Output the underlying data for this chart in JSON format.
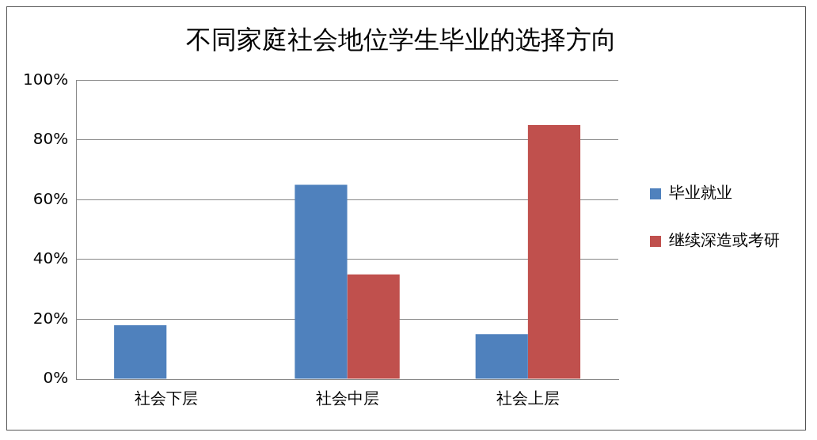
{
  "chart_data": {
    "type": "bar",
    "title": "不同家庭社会地位学生毕业的选择方向",
    "categories": [
      "社会下层",
      "社会中层",
      "社会上层"
    ],
    "series": [
      {
        "name": "毕业就业",
        "color": "#4f81bd",
        "values": [
          18,
          65,
          15
        ]
      },
      {
        "name": "继续深造或考研",
        "color": "#c0504d",
        "values": [
          0,
          35,
          85
        ]
      }
    ],
    "ylim": [
      0,
      100
    ],
    "yticks": [
      {
        "value": 0,
        "label": "0%"
      },
      {
        "value": 20,
        "label": "20%"
      },
      {
        "value": 40,
        "label": "40%"
      },
      {
        "value": 60,
        "label": "60%"
      },
      {
        "value": 80,
        "label": "80%"
      },
      {
        "value": 100,
        "label": "100%"
      }
    ],
    "grid": "y",
    "legend": "right"
  }
}
